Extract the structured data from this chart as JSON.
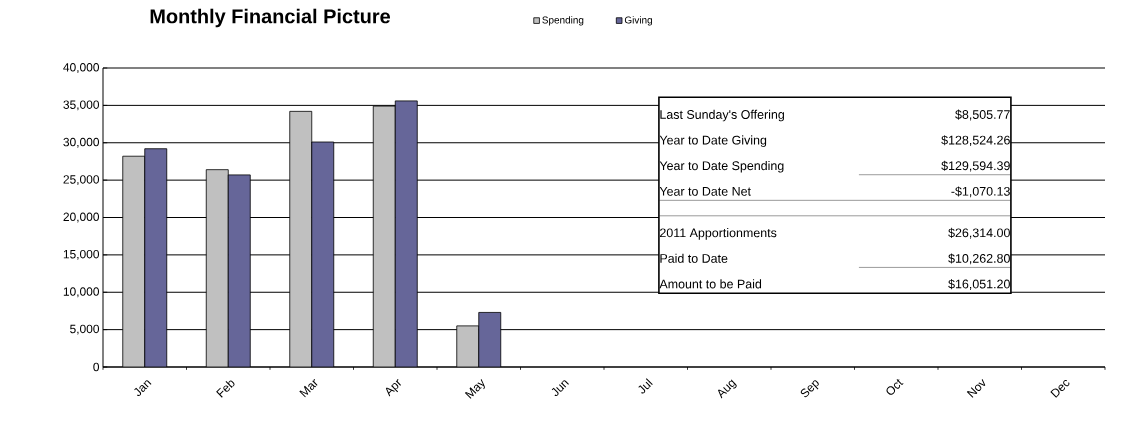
{
  "chart_data": {
    "type": "bar",
    "title": "Monthly Financial Picture",
    "categories": [
      "Jan",
      "Feb",
      "Mar",
      "Apr",
      "May",
      "Jun",
      "Jul",
      "Aug",
      "Sep",
      "Oct",
      "Nov",
      "Dec"
    ],
    "series": [
      {
        "name": "Spending",
        "color": "#c0c0c0",
        "values": [
          28200,
          26400,
          34200,
          34900,
          5500,
          null,
          null,
          null,
          null,
          null,
          null,
          null
        ]
      },
      {
        "name": "Giving",
        "color": "#666699",
        "values": [
          29200,
          25700,
          30100,
          35600,
          7300,
          null,
          null,
          null,
          null,
          null,
          null,
          null
        ]
      }
    ],
    "ylim": [
      0,
      40000
    ],
    "yticks": [
      0,
      {
        "value": 5000,
        "label": "5,000"
      },
      {
        "value": 10000,
        "label": "10,000"
      },
      {
        "value": 15000,
        "label": "15,000"
      },
      {
        "value": 20000,
        "label": "20,000"
      },
      {
        "value": 25000,
        "label": "25,000"
      },
      {
        "value": 30000,
        "label": "30,000"
      },
      {
        "value": 35000,
        "label": "35,000"
      },
      {
        "value": 40000,
        "label": "40,000"
      }
    ],
    "grid": "y",
    "legend": "top",
    "annotations": [
      "Last Sunday's Offering",
      "$8,505.77",
      "Year to Date Giving",
      "$128,524.26",
      "Year to Date Spending",
      "$129,594.39",
      "Year to Date Net",
      "-$1,070.13",
      "2011 Apportionments",
      "$26,314.00",
      "Paid to Date",
      "$10,262.80",
      "Amount to be Paid",
      "$16,051.20"
    ]
  }
}
